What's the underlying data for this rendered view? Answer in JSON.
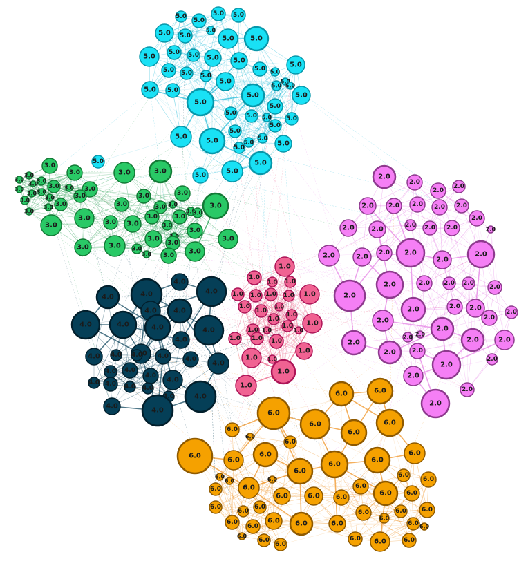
{
  "clusters": [
    {
      "id": "c1",
      "label": "1.0",
      "fill": "#f06292",
      "stroke": "#ad1457",
      "edge": "#e8507a"
    },
    {
      "id": "c2",
      "label": "2.0",
      "fill": "#f57ff5",
      "stroke": "#8e3a8e",
      "edge": "#e47ee4"
    },
    {
      "id": "c3",
      "label": "3.0",
      "fill": "#29c966",
      "stroke": "#137a36",
      "edge": "#1a9a48"
    },
    {
      "id": "c4",
      "label": "4.0",
      "fill": "#053f57",
      "stroke": "#021f2c",
      "edge": "#053f57"
    },
    {
      "id": "c5",
      "label": "5.0",
      "fill": "#19e1f5",
      "stroke": "#0797aa",
      "edge": "#18b8d6"
    },
    {
      "id": "c6",
      "label": "6.0",
      "fill": "#f5a100",
      "stroke": "#8f5a00",
      "edge": "#ef8f1a"
    }
  ]
}
